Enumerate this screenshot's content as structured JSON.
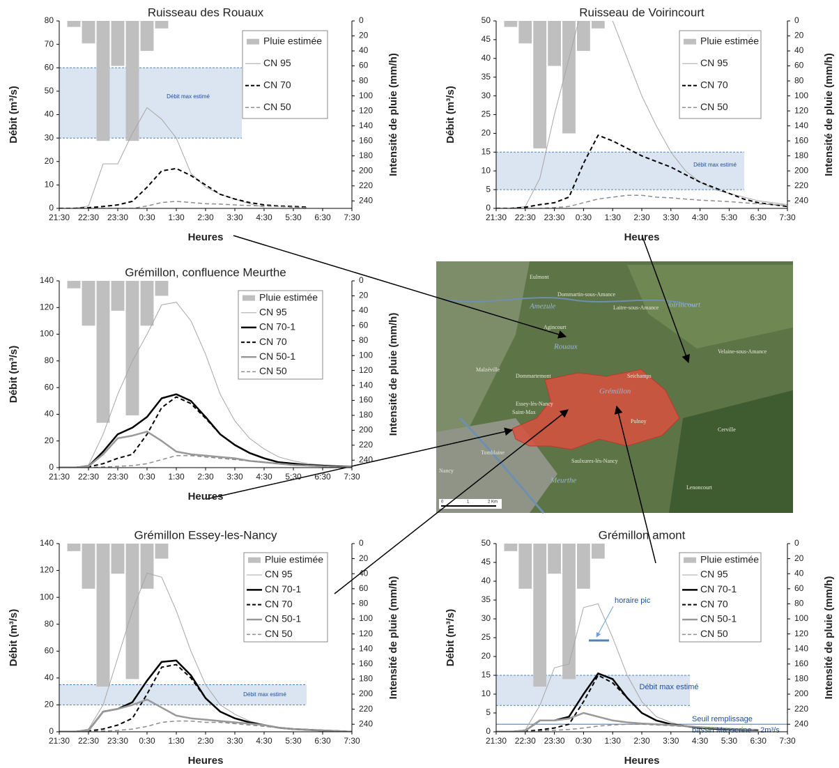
{
  "chart_data": [
    {
      "type": "line",
      "title": "Ruisseau des Rouaux",
      "xlabel": "Heures",
      "ylabel": "Débit (m³/s)",
      "y2label": "Intensité de pluie (mm/h)",
      "categories": [
        "21:30",
        null,
        "22:30",
        null,
        "23:30",
        null,
        "0:30",
        null,
        "1:30",
        null,
        "2:30",
        null,
        "3:30",
        null,
        "4:30",
        null,
        "5:30",
        null,
        "6:30",
        null,
        "7:30"
      ],
      "ylim": [
        0,
        80
      ],
      "yticks": [
        0,
        10,
        20,
        30,
        40,
        50,
        60,
        70,
        80
      ],
      "y2lim": [
        0,
        250
      ],
      "y2_inverted": true,
      "y2ticks": [
        0,
        20,
        40,
        60,
        80,
        100,
        120,
        140,
        160,
        180,
        200,
        220,
        240
      ],
      "band": {
        "label": "Débit max estimé",
        "range": [
          30,
          60
        ]
      },
      "series": [
        {
          "name": "Pluie estimée",
          "type": "bar",
          "axis": "y2",
          "color": "#bfbfbf",
          "values": [
            0,
            8,
            30,
            160,
            60,
            160,
            40,
            10,
            0,
            0,
            0,
            0,
            0,
            0,
            0,
            0,
            0,
            0,
            0,
            0,
            0
          ]
        },
        {
          "name": "CN 95",
          "color": "#a6a6a6",
          "width": 1,
          "dash": false,
          "values": [
            0,
            0,
            1,
            19,
            19,
            32,
            43,
            38,
            30,
            15,
            9,
            6,
            4,
            2,
            0.5,
            null,
            null,
            null,
            null,
            null,
            null
          ]
        },
        {
          "name": "CN 70",
          "color": "#000000",
          "width": 2,
          "dash": true,
          "values": [
            0,
            0,
            0.3,
            0.8,
            1.5,
            3,
            9,
            16,
            17,
            14,
            10,
            6,
            4,
            2.5,
            1.5,
            1,
            0.8,
            0.5,
            null,
            null,
            null
          ]
        },
        {
          "name": "CN 50",
          "color": "#8c8c8c",
          "width": 1.5,
          "dash": true,
          "values": [
            0,
            0,
            0,
            0,
            0,
            0,
            1,
            2.5,
            3,
            2.5,
            2,
            1.8,
            1.5,
            1.2,
            1,
            0.8,
            0.5,
            0.3,
            null,
            null,
            null
          ]
        }
      ]
    },
    {
      "type": "line",
      "title": "Ruisseau de Voirincourt",
      "xlabel": "Heures",
      "ylabel": "Débit (m³/s)",
      "y2label": "Intensité de pluie (mm/h)",
      "categories": [
        "21:30",
        null,
        "22:30",
        null,
        "23:30",
        null,
        "0:30",
        null,
        "1:30",
        null,
        "2:30",
        null,
        "3:30",
        null,
        "4:30",
        null,
        "5:30",
        null,
        "6:30",
        null,
        "7:30"
      ],
      "ylim": [
        0,
        50
      ],
      "yticks": [
        0,
        5,
        10,
        15,
        20,
        25,
        30,
        35,
        40,
        45,
        50
      ],
      "y2lim": [
        0,
        250
      ],
      "y2_inverted": true,
      "y2ticks": [
        0,
        20,
        40,
        60,
        80,
        100,
        120,
        140,
        160,
        180,
        200,
        220,
        240
      ],
      "band": {
        "label": "Débit max estimé",
        "range": [
          5,
          15
        ]
      },
      "series": [
        {
          "name": "Pluie estimée",
          "type": "bar",
          "axis": "y2",
          "color": "#bfbfbf",
          "values": [
            0,
            8,
            30,
            170,
            60,
            150,
            40,
            10,
            0,
            0,
            0,
            0,
            0,
            0,
            0,
            0,
            0,
            0,
            0,
            0,
            0
          ]
        },
        {
          "name": "CN 95",
          "color": "#a6a6a6",
          "width": 1,
          "dash": false,
          "values": [
            0,
            0,
            0.5,
            8,
            25,
            40,
            55,
            58,
            50,
            40,
            30,
            22,
            15,
            10,
            7,
            5,
            4,
            3,
            2,
            1.5,
            1
          ]
        },
        {
          "name": "CN 70",
          "color": "#000000",
          "width": 2,
          "dash": true,
          "values": [
            0,
            0,
            0.3,
            1,
            1.5,
            3,
            12,
            19.5,
            18,
            16,
            14,
            12.5,
            11,
            9,
            7,
            5.5,
            4,
            2.5,
            1.5,
            1,
            0.5
          ]
        },
        {
          "name": "CN 50",
          "color": "#8c8c8c",
          "width": 1.5,
          "dash": true,
          "values": [
            0,
            0,
            0,
            0,
            0.2,
            0.5,
            1.5,
            2.5,
            3,
            3.5,
            3.5,
            3,
            2.8,
            2.5,
            2.2,
            2,
            1.8,
            1.5,
            1.2,
            1,
            0.8
          ]
        }
      ]
    },
    {
      "type": "line",
      "title": "Grémillon, confluence Meurthe",
      "xlabel": "Heures",
      "ylabel": "Débit (m³/s)",
      "y2label": "Intensité de pluie (mm/h)",
      "categories": [
        "21:30",
        null,
        "22:30",
        null,
        "23:30",
        null,
        "0:30",
        null,
        "1:30",
        null,
        "2:30",
        null,
        "3:30",
        null,
        "4:30",
        null,
        "5:30",
        null,
        "6:30",
        null,
        "7:30"
      ],
      "ylim": [
        0,
        140
      ],
      "yticks": [
        0,
        20,
        40,
        60,
        80,
        100,
        120,
        140
      ],
      "y2lim": [
        0,
        250
      ],
      "y2_inverted": true,
      "y2ticks": [
        0,
        20,
        40,
        60,
        80,
        100,
        120,
        140,
        160,
        180,
        200,
        220,
        240
      ],
      "series": [
        {
          "name": "Pluie estimée",
          "type": "bar",
          "axis": "y2",
          "color": "#bfbfbf",
          "values": [
            0,
            10,
            60,
            190,
            40,
            180,
            60,
            20,
            0,
            0,
            0,
            0,
            0,
            0,
            0,
            0,
            0,
            0,
            0,
            0,
            0
          ]
        },
        {
          "name": "CN 95",
          "color": "#a6a6a6",
          "width": 1,
          "dash": false,
          "values": [
            0,
            0,
            2,
            25,
            55,
            80,
            100,
            122,
            124,
            110,
            85,
            55,
            35,
            22,
            14,
            8,
            5,
            3,
            2,
            1,
            0.5
          ]
        },
        {
          "name": "CN 70-1",
          "color": "#000000",
          "width": 2.5,
          "dash": false,
          "values": [
            0,
            0,
            1,
            12,
            25,
            30,
            38,
            52,
            55,
            50,
            38,
            25,
            17,
            11,
            7,
            4,
            3,
            2,
            1.5,
            1,
            0.5
          ]
        },
        {
          "name": "CN 70",
          "color": "#000000",
          "width": 2,
          "dash": true,
          "values": [
            0,
            0,
            0.5,
            3,
            7,
            10,
            25,
            45,
            53,
            48,
            37,
            25,
            17,
            11,
            7,
            4,
            3,
            2,
            1.5,
            1,
            0.5
          ]
        },
        {
          "name": "CN 50-1",
          "color": "#999999",
          "width": 2.5,
          "dash": false,
          "values": [
            0,
            0,
            1,
            10,
            22,
            24,
            27,
            20,
            12,
            10,
            9,
            8,
            7,
            5,
            4,
            3,
            2,
            1.5,
            1,
            0.5,
            0.3
          ]
        },
        {
          "name": "CN 50",
          "color": "#8c8c8c",
          "width": 1.5,
          "dash": true,
          "values": [
            0,
            0,
            0,
            0.5,
            1,
            1.5,
            3,
            6,
            9,
            9,
            8,
            7,
            6,
            5,
            4,
            3,
            2,
            1.5,
            1,
            0.5,
            0.3
          ]
        }
      ]
    },
    {
      "type": "line",
      "title": "Grémillon Essey-les-Nancy",
      "xlabel": "Heures",
      "ylabel": "Débit (m³/s)",
      "y2label": "Intensité de pluie (mm/h)",
      "categories": [
        "21:30",
        null,
        "22:30",
        null,
        "23:30",
        null,
        "0:30",
        null,
        "1:30",
        null,
        "2:30",
        null,
        "3:30",
        null,
        "4:30",
        null,
        "5:30",
        null,
        "6:30",
        null,
        "7:30"
      ],
      "ylim": [
        0,
        140
      ],
      "yticks": [
        0,
        20,
        40,
        60,
        80,
        100,
        120,
        140
      ],
      "y2lim": [
        0,
        250
      ],
      "y2_inverted": true,
      "y2ticks": [
        0,
        20,
        40,
        60,
        80,
        100,
        120,
        140,
        160,
        180,
        200,
        220,
        240
      ],
      "band": {
        "label": "Débit max estimé",
        "range": [
          20,
          35
        ]
      },
      "series": [
        {
          "name": "Pluie estimée",
          "type": "bar",
          "axis": "y2",
          "color": "#bfbfbf",
          "values": [
            0,
            10,
            60,
            190,
            40,
            180,
            60,
            20,
            0,
            0,
            0,
            0,
            0,
            0,
            0,
            0,
            0,
            0,
            0,
            0,
            0
          ]
        },
        {
          "name": "CN 95",
          "color": "#a6a6a6",
          "width": 1,
          "dash": false,
          "values": [
            0,
            0,
            2,
            20,
            55,
            90,
            118,
            115,
            90,
            60,
            35,
            20,
            13,
            8,
            5,
            3,
            2,
            1,
            0.5,
            0.3,
            0.2
          ]
        },
        {
          "name": "CN 70-1",
          "color": "#000000",
          "width": 2.5,
          "dash": false,
          "values": [
            0,
            0,
            1,
            15,
            17,
            22,
            38,
            52,
            53,
            42,
            25,
            15,
            10,
            7,
            5,
            3,
            2,
            1.5,
            1,
            0.5,
            0
          ]
        },
        {
          "name": "CN 70",
          "color": "#000000",
          "width": 2,
          "dash": true,
          "values": [
            0,
            0,
            0.5,
            2,
            5,
            10,
            28,
            48,
            50,
            40,
            25,
            15,
            10,
            7,
            5,
            3,
            2,
            1.5,
            1,
            0.5,
            0
          ]
        },
        {
          "name": "CN 50-1",
          "color": "#999999",
          "width": 2.5,
          "dash": false,
          "values": [
            0,
            0,
            1,
            15,
            17,
            20,
            24,
            18,
            12,
            10,
            9,
            8,
            7,
            6,
            5,
            3,
            2,
            1.5,
            1,
            0.5,
            0
          ]
        },
        {
          "name": "CN 50",
          "color": "#8c8c8c",
          "width": 1.5,
          "dash": true,
          "values": [
            0,
            0,
            0,
            0.5,
            1,
            2,
            4,
            7,
            8,
            8,
            7,
            7,
            6,
            5,
            4,
            3,
            2,
            1.5,
            1,
            0.5,
            0
          ]
        }
      ]
    },
    {
      "type": "line",
      "title": "Grémillon amont",
      "xlabel": "Heures",
      "ylabel": "Débit (m³/s)",
      "y2label": "Intensité de pluie (mm/h)",
      "categories": [
        "21:30",
        null,
        "22:30",
        null,
        "23:30",
        null,
        "0:30",
        null,
        "1:30",
        null,
        "2:30",
        null,
        "3:30",
        null,
        "4:30",
        null,
        "5:30",
        null,
        "6:30",
        null,
        "7:30"
      ],
      "ylim": [
        0,
        50
      ],
      "yticks": [
        0,
        5,
        10,
        15,
        20,
        25,
        30,
        35,
        40,
        45,
        50
      ],
      "y2lim": [
        0,
        250
      ],
      "y2_inverted": true,
      "y2ticks": [
        0,
        20,
        40,
        60,
        80,
        100,
        120,
        140,
        160,
        180,
        200,
        220,
        240
      ],
      "band": {
        "label": "Débit max estimé",
        "range": [
          7,
          15
        ]
      },
      "hline": {
        "value": 2,
        "label": [
          "Seuil remplissage",
          "bassin Masserine ~ 2m³/s"
        ]
      },
      "annotation": "horaire pic",
      "series": [
        {
          "name": "Pluie estimée",
          "type": "bar",
          "axis": "y2",
          "color": "#bfbfbf",
          "values": [
            0,
            10,
            60,
            190,
            40,
            180,
            60,
            20,
            0,
            0,
            0,
            0,
            0,
            0,
            0,
            0,
            0,
            0,
            0,
            0,
            0
          ]
        },
        {
          "name": "CN 95",
          "color": "#a6a6a6",
          "width": 1,
          "dash": false,
          "values": [
            0,
            0,
            0.5,
            7,
            17,
            18,
            33,
            34,
            25,
            15,
            8,
            4,
            2.5,
            1.5,
            1,
            0.7,
            0.5,
            0.3,
            null,
            null,
            null
          ]
        },
        {
          "name": "CN 70-1",
          "color": "#000000",
          "width": 2.5,
          "dash": false,
          "values": [
            0,
            0,
            0.3,
            3,
            3,
            4,
            10,
            15.5,
            14,
            9,
            5,
            3,
            2,
            1.5,
            1,
            0.8,
            0.6,
            0.5,
            0.4,
            null,
            null
          ]
        },
        {
          "name": "CN 70",
          "color": "#000000",
          "width": 2,
          "dash": true,
          "values": [
            0,
            0,
            0.1,
            0.5,
            1,
            2,
            8,
            15,
            13,
            9,
            5,
            3,
            2,
            1.5,
            1,
            0.8,
            0.6,
            0.5,
            0.4,
            null,
            null
          ]
        },
        {
          "name": "CN 50-1",
          "color": "#999999",
          "width": 2.5,
          "dash": false,
          "values": [
            0,
            0,
            0.3,
            3,
            3,
            3.5,
            5,
            4,
            3,
            2.5,
            2.2,
            2,
            1.8,
            1.5,
            1.2,
            1,
            0.8,
            0.6,
            0.5,
            null,
            null
          ]
        },
        {
          "name": "CN 50",
          "color": "#8c8c8c",
          "width": 1.5,
          "dash": true,
          "values": [
            0,
            0,
            0,
            0.2,
            0.4,
            0.6,
            1,
            1.5,
            1.8,
            2,
            2,
            1.8,
            1.6,
            1.4,
            1.2,
            1,
            0.8,
            0.6,
            0.5,
            null,
            null
          ]
        }
      ]
    }
  ],
  "map": {
    "labels": [
      "Eulmont",
      "Dommartin-sous-Amance",
      "Laitre-sous-Amance",
      "Agincourt",
      "Rouaux",
      "Voirincourt",
      "Amezule",
      "Malzéville",
      "Dommartemont",
      "Essey-lès-Nancy",
      "Saint-Max",
      "Grémillon",
      "Seichamps",
      "Pulnoy",
      "Velaine-sous-Amance",
      "Cerville",
      "Tomblaine",
      "Saulxures-lès-Nancy",
      "Nancy",
      "Meurthe",
      "Lenoncourt"
    ],
    "scale": [
      "0",
      "1",
      "2 Km"
    ]
  }
}
